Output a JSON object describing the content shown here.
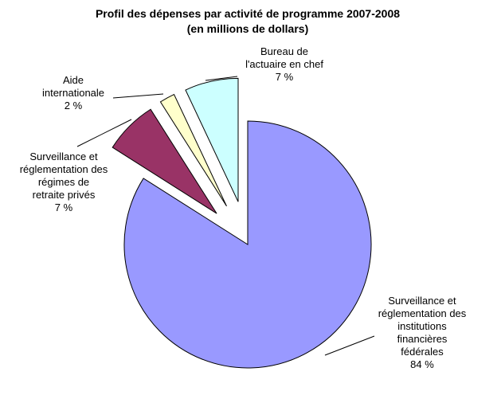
{
  "chart_data": {
    "type": "pie",
    "title": "Profil des dépenses par activité de programme 2007-2008",
    "subtitle": "(en millions de dollars)",
    "categories": [
      "Surveillance et\nréglementation des\ninstitutions\nfinancières\nfédérales",
      "Surveillance et\nréglementation des\nrégimes de\nretraite privés",
      "Aide\ninternationale",
      "Bureau de\nl'actuaire en chef"
    ],
    "values": [
      84,
      7,
      2,
      7
    ],
    "value_labels": [
      "84 %",
      "7 %",
      "2 %",
      "7 %"
    ],
    "colors": [
      "#9999ff",
      "#993366",
      "#ffffcc",
      "#ccffff"
    ],
    "exploded": [
      false,
      true,
      true,
      true
    ]
  }
}
